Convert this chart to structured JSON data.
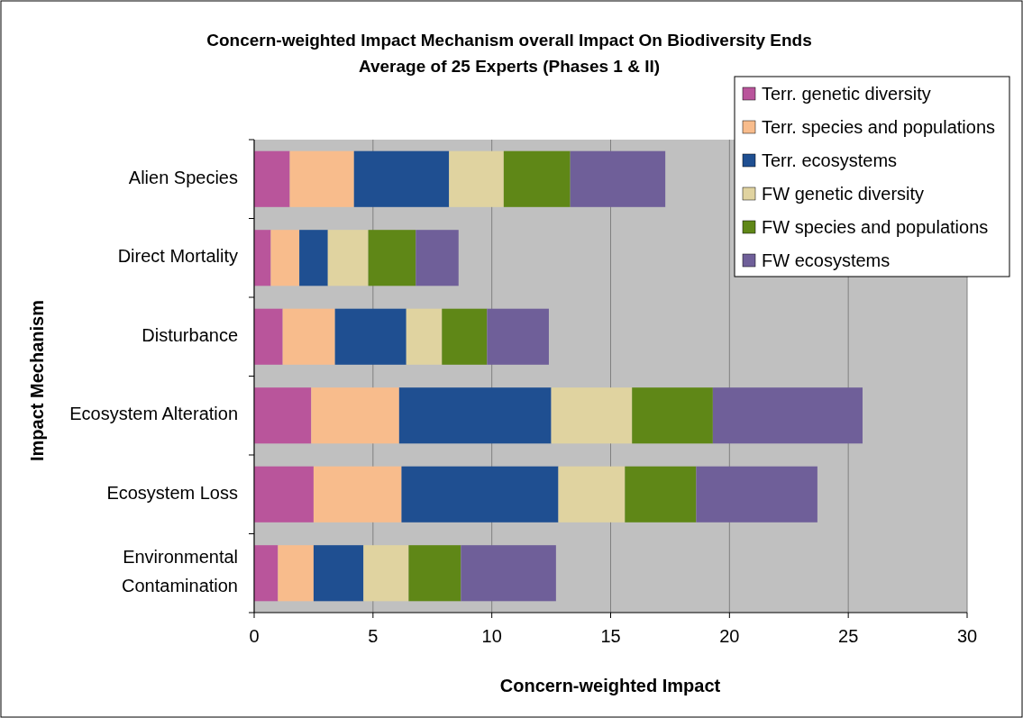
{
  "chart_data": {
    "type": "bar",
    "orientation": "horizontal",
    "stacked": true,
    "title": "Concern-weighted Impact Mechanism overall Impact On Biodiversity Ends",
    "subtitle": "Average of 25 Experts (Phases 1 & II)",
    "xlabel": "Concern-weighted Impact",
    "ylabel": "Impact Mechanism",
    "categories": [
      "Alien Species",
      "Direct Mortality",
      "Disturbance",
      "Ecosystem Alteration",
      "Ecosystem Loss",
      "Environmental Contamination"
    ],
    "series": [
      {
        "name": "Terr. genetic diversity",
        "color": "#b9559b",
        "values": [
          1.5,
          0.7,
          1.2,
          2.4,
          2.5,
          1.0
        ]
      },
      {
        "name": "Terr. species and populations",
        "color": "#f8bc8c",
        "values": [
          2.7,
          1.2,
          2.2,
          3.7,
          3.7,
          1.5
        ]
      },
      {
        "name": "Terr. ecosystems",
        "color": "#1f4f91",
        "values": [
          4.0,
          1.2,
          3.0,
          6.4,
          6.6,
          2.1
        ]
      },
      {
        "name": "FW genetic diversity",
        "color": "#e0d3a0",
        "values": [
          2.3,
          1.7,
          1.5,
          3.4,
          2.8,
          1.9
        ]
      },
      {
        "name": "FW species and populations",
        "color": "#5f8717",
        "values": [
          2.8,
          2.0,
          1.9,
          3.4,
          3.0,
          2.2
        ]
      },
      {
        "name": "FW ecosystems",
        "color": "#6f5f99",
        "values": [
          4.0,
          1.8,
          2.6,
          6.3,
          5.1,
          4.0
        ]
      }
    ],
    "xlim": [
      0,
      30
    ],
    "xticks": [
      0,
      5,
      10,
      15,
      20,
      25,
      30
    ],
    "grid": "x",
    "legend": "top right"
  }
}
